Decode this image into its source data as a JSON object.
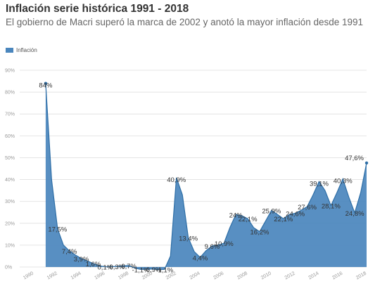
{
  "chart_data": {
    "type": "area",
    "title": "Inflación serie histórica 1991 - 2018",
    "subtitle": "El gobierno de Macri superó la marca de 2002 y anotó la mayor inflación desde 1991",
    "legend": {
      "placement": "top-left",
      "entries": [
        "Inflación"
      ]
    },
    "color": "#4a86bd",
    "grid": true,
    "ylim": [
      0,
      90
    ],
    "yticks": [
      0,
      10,
      20,
      30,
      40,
      50,
      60,
      70,
      80,
      90
    ],
    "ytick_labels": [
      "0%",
      "10%",
      "20%",
      "30%",
      "40%",
      "50%",
      "60%",
      "70%",
      "80%",
      "90%"
    ],
    "xlim": [
      1990,
      2018
    ],
    "xticks": [
      1990,
      1992,
      1994,
      1996,
      1998,
      2000,
      2002,
      2004,
      2006,
      2008,
      2010,
      2012,
      2014,
      2016,
      2018
    ],
    "series": [
      {
        "name": "Inflación",
        "x": [
          1991,
          1991.5,
          1992,
          1992.5,
          1993,
          1993.5,
          1994,
          1994.5,
          1995,
          1995.5,
          1996,
          1996.5,
          1997,
          1997.5,
          1998,
          1998.5,
          1999,
          1999.5,
          2000,
          2000.5,
          2001,
          2001.5,
          2002,
          2002.5,
          2003,
          2003.5,
          2004,
          2004.5,
          2005,
          2005.5,
          2006,
          2006.5,
          2007,
          2007.5,
          2008,
          2008.5,
          2009,
          2009.5,
          2010,
          2010.5,
          2011,
          2011.5,
          2012,
          2012.5,
          2013,
          2013.5,
          2014,
          2014.5,
          2015,
          2015.5,
          2016,
          2016.5,
          2017,
          2017.5,
          2018
        ],
        "y": [
          84,
          40,
          17.5,
          10,
          7.4,
          5.5,
          3.9,
          2.8,
          1.6,
          0.6,
          0.1,
          0.2,
          0.3,
          0.5,
          0.7,
          -0.5,
          -1.1,
          -0.95,
          -0.9,
          -1.2,
          -1.1,
          5,
          40.9,
          33,
          13.4,
          7,
          4.4,
          7.5,
          9.6,
          10,
          10.9,
          18,
          24,
          23.5,
          22.1,
          18,
          16.2,
          21,
          25.9,
          24,
          22.1,
          24,
          24.6,
          26,
          27.6,
          33,
          39.1,
          35,
          28.1,
          34,
          40.3,
          32,
          24.8,
          34,
          47.6
        ]
      }
    ],
    "data_labels": [
      {
        "x": 1991,
        "y": 84,
        "text": "84%"
      },
      {
        "x": 1992,
        "y": 17.5,
        "text": "17,5%"
      },
      {
        "x": 1993,
        "y": 7.4,
        "text": "7,4%"
      },
      {
        "x": 1994,
        "y": 3.9,
        "text": "3,9%"
      },
      {
        "x": 1995,
        "y": 1.6,
        "text": "1,6%"
      },
      {
        "x": 1996,
        "y": 0.1,
        "text": "0,1%"
      },
      {
        "x": 1997,
        "y": 0.3,
        "text": "0,3%"
      },
      {
        "x": 1998,
        "y": 0.7,
        "text": "0,7%"
      },
      {
        "x": 1999,
        "y": -1.1,
        "text": "-1,1%"
      },
      {
        "x": 2000,
        "y": -0.9,
        "text": "-0,9%"
      },
      {
        "x": 2001,
        "y": -1.1,
        "text": "-1,1%"
      },
      {
        "x": 2002,
        "y": 40.9,
        "text": "40,9%"
      },
      {
        "x": 2003,
        "y": 13.4,
        "text": "13,4%"
      },
      {
        "x": 2004,
        "y": 4.4,
        "text": "4,4%"
      },
      {
        "x": 2005,
        "y": 9.6,
        "text": "9,6%"
      },
      {
        "x": 2006,
        "y": 10.9,
        "text": "10,9%"
      },
      {
        "x": 2007,
        "y": 24,
        "text": "24%"
      },
      {
        "x": 2008,
        "y": 22.1,
        "text": "22,1%"
      },
      {
        "x": 2009,
        "y": 16.2,
        "text": "16,2%"
      },
      {
        "x": 2010,
        "y": 25.9,
        "text": "25,9%"
      },
      {
        "x": 2011,
        "y": 22.1,
        "text": "22,1%"
      },
      {
        "x": 2012,
        "y": 24.6,
        "text": "24,6%"
      },
      {
        "x": 2013,
        "y": 27.6,
        "text": "27,6%"
      },
      {
        "x": 2014,
        "y": 39.1,
        "text": "39,1%"
      },
      {
        "x": 2015,
        "y": 28.1,
        "text": "28,1%"
      },
      {
        "x": 2016,
        "y": 40.3,
        "text": "40,3%"
      },
      {
        "x": 2017,
        "y": 24.8,
        "text": "24,8%"
      },
      {
        "x": 2018,
        "y": 47.6,
        "text": "47,6%"
      }
    ]
  }
}
